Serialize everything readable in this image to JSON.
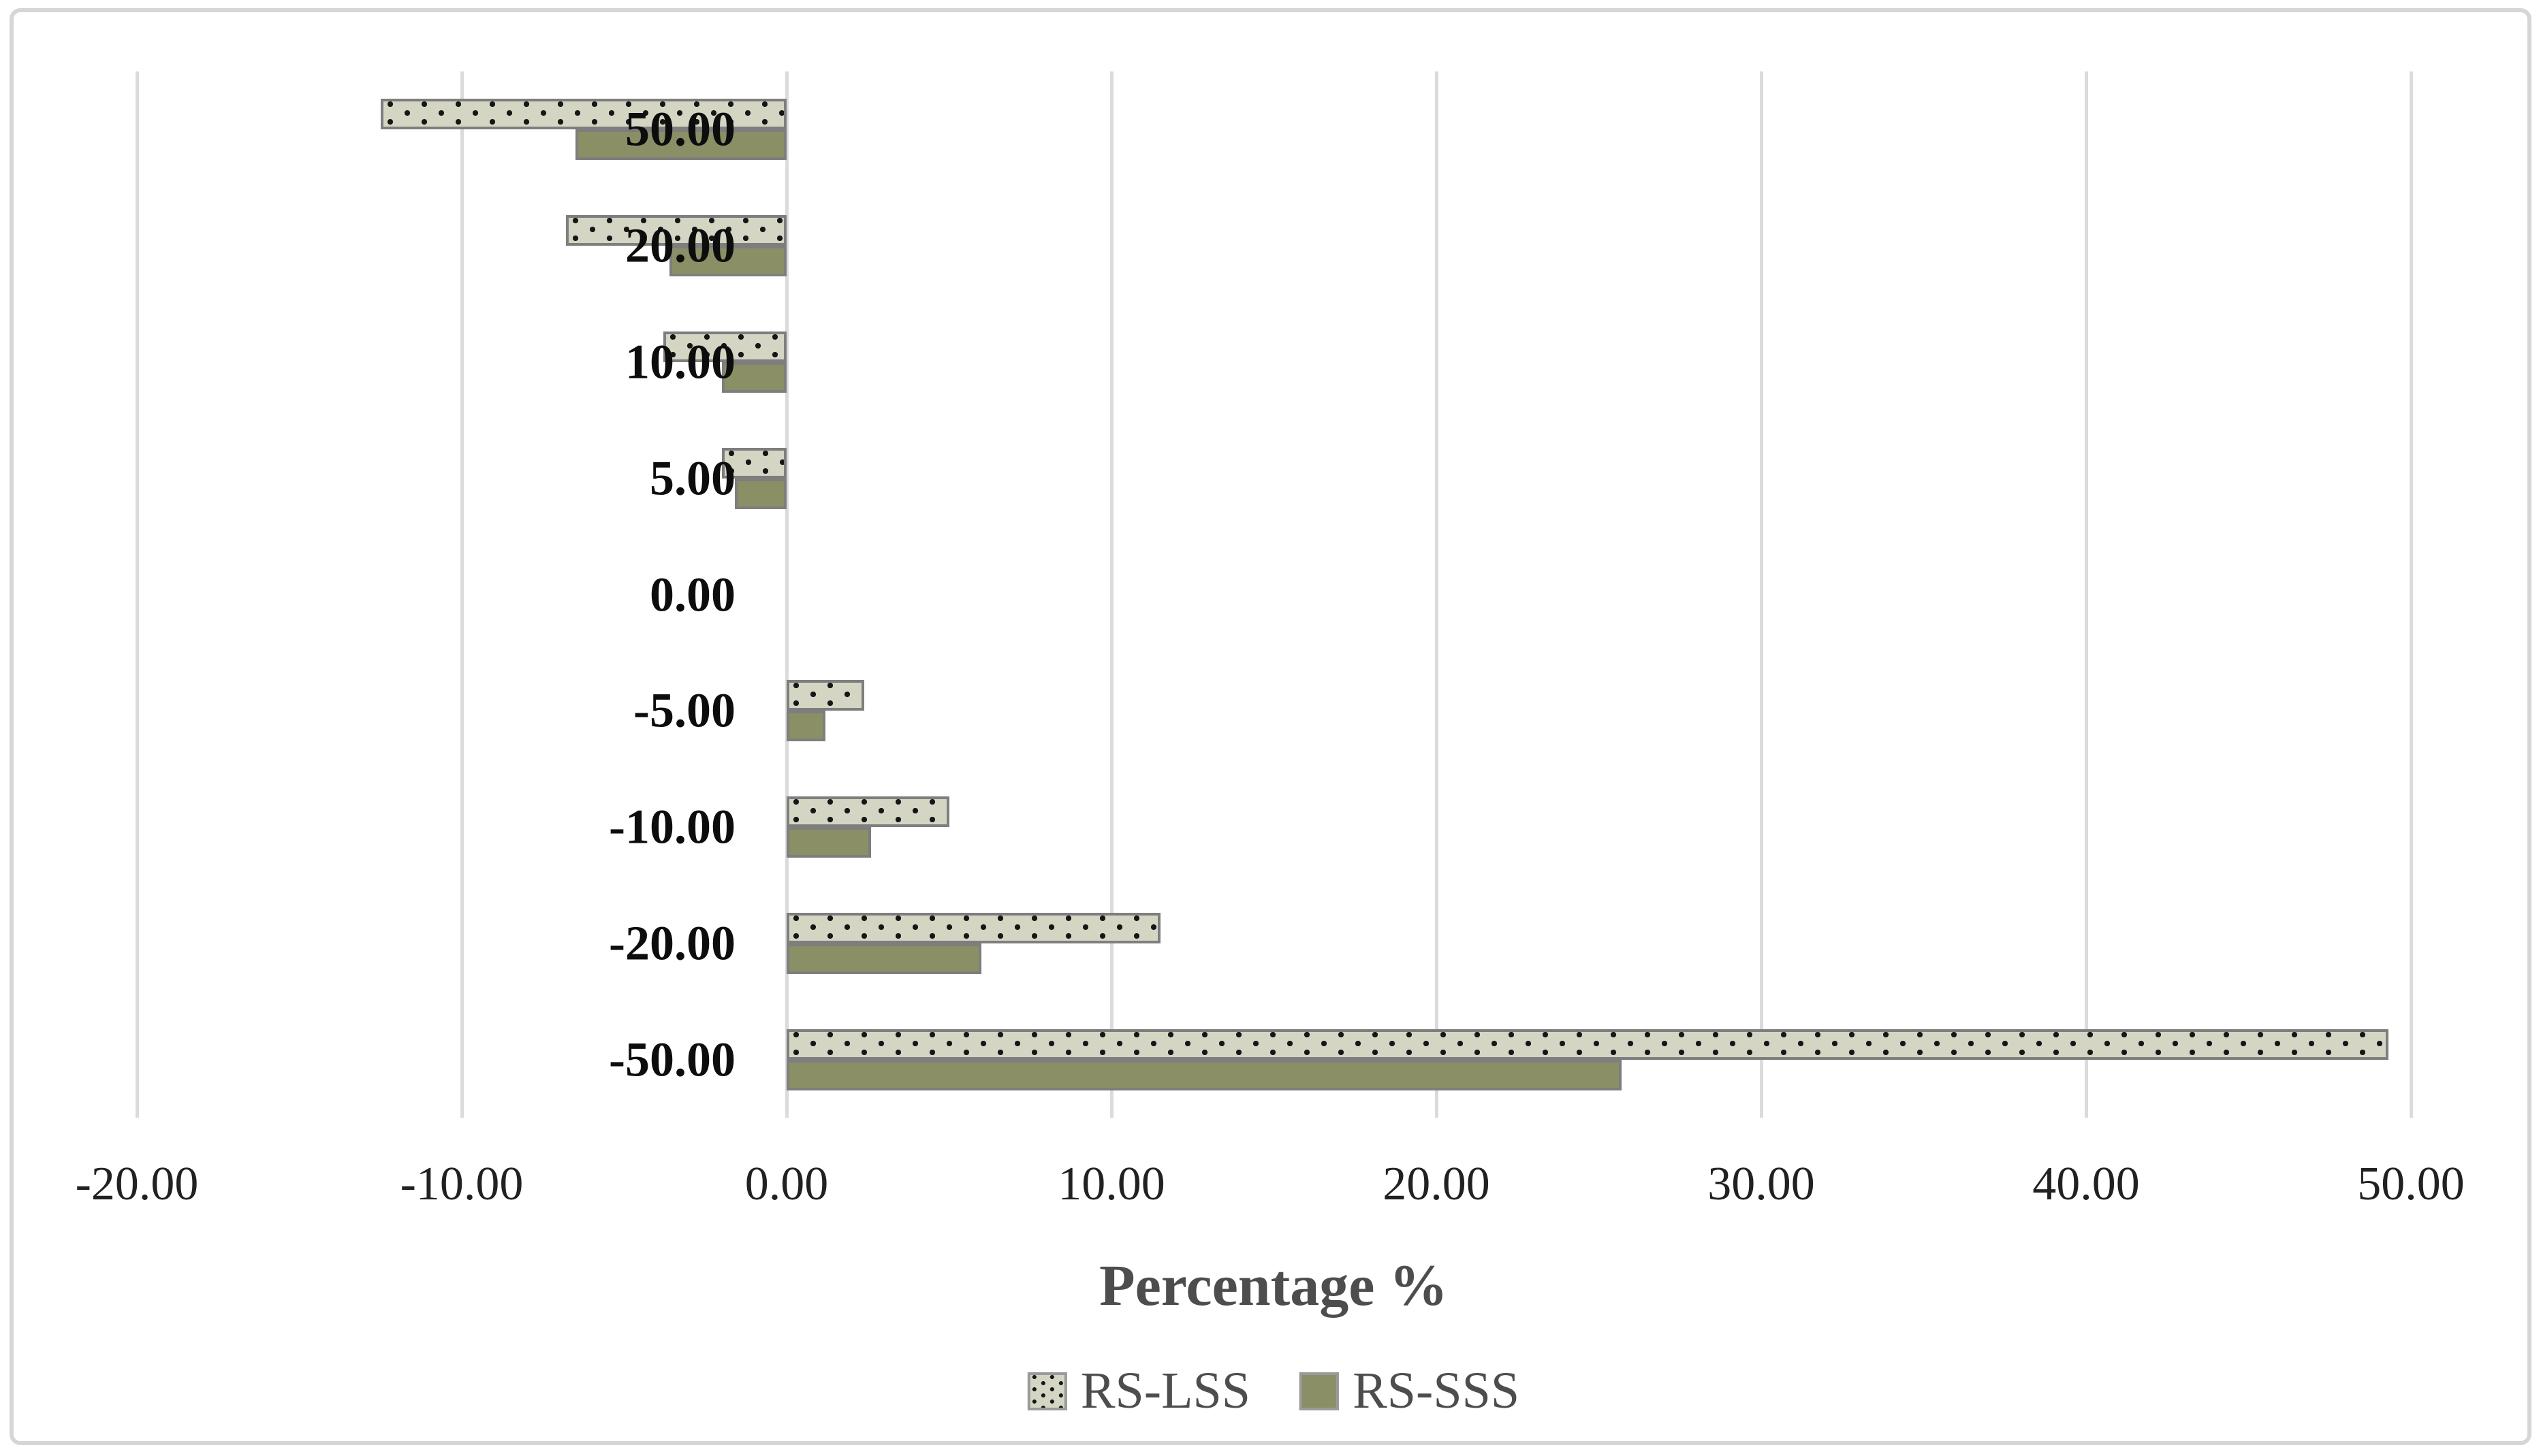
{
  "chart_data": {
    "type": "bar",
    "orientation": "horizontal",
    "title": "",
    "xlabel": "Percentage %",
    "ylabel": "",
    "categories": [
      "50.00",
      "20.00",
      "10.00",
      "5.00",
      "0.00",
      "-5.00",
      "-10.00",
      "-20.00",
      "-50.00"
    ],
    "series": [
      {
        "name": "RS-LSS",
        "values": [
          -12.5,
          -6.8,
          -3.8,
          -2.0,
          0.0,
          2.4,
          5.0,
          11.5,
          49.3
        ]
      },
      {
        "name": "RS-SSS",
        "values": [
          -6.5,
          -3.6,
          -2.0,
          -1.6,
          0.0,
          1.2,
          2.6,
          6.0,
          25.7
        ]
      }
    ],
    "x_ticks": [
      "-20.00",
      "-10.00",
      "0.00",
      "10.00",
      "20.00",
      "30.00",
      "40.00",
      "50.00"
    ],
    "x_tick_values": [
      -20,
      -10,
      0,
      10,
      20,
      30,
      40,
      50
    ],
    "xlim": [
      -20,
      50
    ],
    "grid": true,
    "legend_position": "bottom",
    "colors": {
      "rs_lss_fill": "#d4d6c3",
      "rs_sss_fill": "#8b8f66",
      "bar_border": "#7e7e7e",
      "gridline": "#dbdbdb",
      "tick_text": "#212121",
      "category_text": "#0d0d0d",
      "axis_title_text": "#4d4d4d",
      "legend_text": "#4d4d4d",
      "figure_border": "#d6d6d6"
    }
  }
}
